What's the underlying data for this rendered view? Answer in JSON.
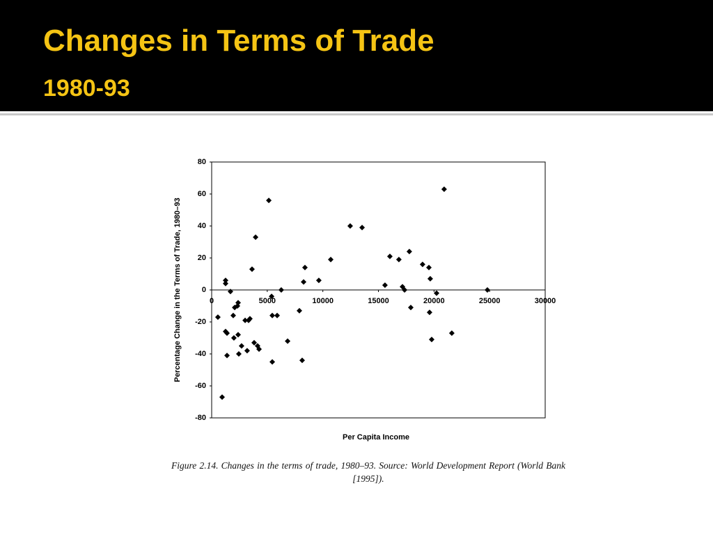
{
  "header": {
    "title": "Changes in Terms of Trade",
    "subtitle": "1980-93"
  },
  "chart_data": {
    "type": "scatter",
    "xlabel": "Per Capita Income",
    "ylabel": "Percentage Change in the Terms of Trade, 1980–93",
    "caption": "Figure 2.14. Changes in the terms of trade, 1980–93. Source: World Development Report (World Bank [1995]).",
    "color": "#000000",
    "xlim": [
      0,
      30000
    ],
    "ylim": [
      -80,
      80
    ],
    "xticks": [
      0,
      5000,
      10000,
      15000,
      20000,
      25000,
      30000
    ],
    "yticks": [
      80,
      60,
      40,
      20,
      0,
      -20,
      -40,
      -60,
      -80
    ],
    "x": [
      560,
      940,
      1250,
      1250,
      1250,
      1380,
      1380,
      1690,
      1940,
      2000,
      2070,
      2320,
      2380,
      2380,
      2440,
      2690,
      3010,
      3190,
      3320,
      3440,
      3630,
      3820,
      3950,
      4130,
      4260,
      5140,
      5390,
      5450,
      5450,
      5890,
      6260,
      6830,
      7890,
      8140,
      8270,
      8390,
      9640,
      10710,
      12460,
      13530,
      15590,
      16030,
      16840,
      17160,
      17350,
      17780,
      17910,
      18970,
      19540,
      19600,
      19660,
      19790,
      20230,
      20910,
      21600,
      24800
    ],
    "values": [
      -17,
      -67,
      6,
      4,
      -26,
      -27,
      -41,
      -1,
      -16,
      -30,
      -11,
      -10,
      -8,
      -28,
      -40,
      -35,
      -19,
      -38,
      -19,
      -18,
      13,
      -33,
      33,
      -35,
      -37,
      56,
      -4,
      -16,
      -45,
      -16,
      0,
      -32,
      -13,
      -44,
      5,
      14,
      6,
      19,
      40,
      39,
      3,
      21,
      19,
      2,
      0,
      24,
      -11,
      16,
      14,
      -14,
      7,
      -31,
      -2,
      63,
      -27,
      0
    ]
  }
}
